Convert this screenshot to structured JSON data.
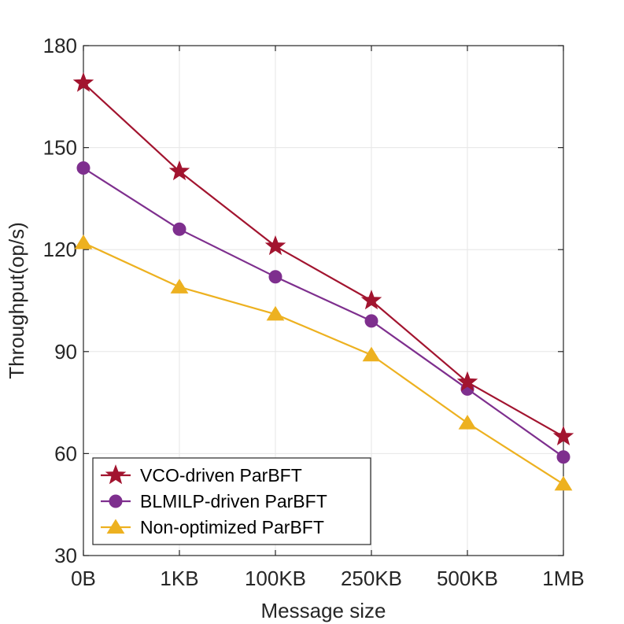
{
  "chart_data": {
    "type": "line",
    "title": "",
    "xlabel": "Message size",
    "ylabel": "Throughput(op/s)",
    "categories": [
      "0B",
      "1KB",
      "100KB",
      "250KB",
      "500KB",
      "1MB"
    ],
    "ylim": [
      30,
      180
    ],
    "yticks": [
      30,
      60,
      90,
      120,
      150,
      180
    ],
    "grid": true,
    "legend_position": "bottom-left",
    "series": [
      {
        "name": "VCO-driven ParBFT",
        "marker": "star",
        "color": "#A2142F",
        "values": [
          169,
          143,
          121,
          105,
          81,
          65
        ]
      },
      {
        "name": "BLMILP-driven ParBFT",
        "marker": "circle",
        "color": "#7E2F8E",
        "values": [
          144,
          126,
          112,
          99,
          79,
          59
        ]
      },
      {
        "name": "Non-optimized ParBFT",
        "marker": "triangle",
        "color": "#EDB120",
        "values": [
          122,
          109,
          101,
          89,
          69,
          51
        ]
      }
    ]
  }
}
